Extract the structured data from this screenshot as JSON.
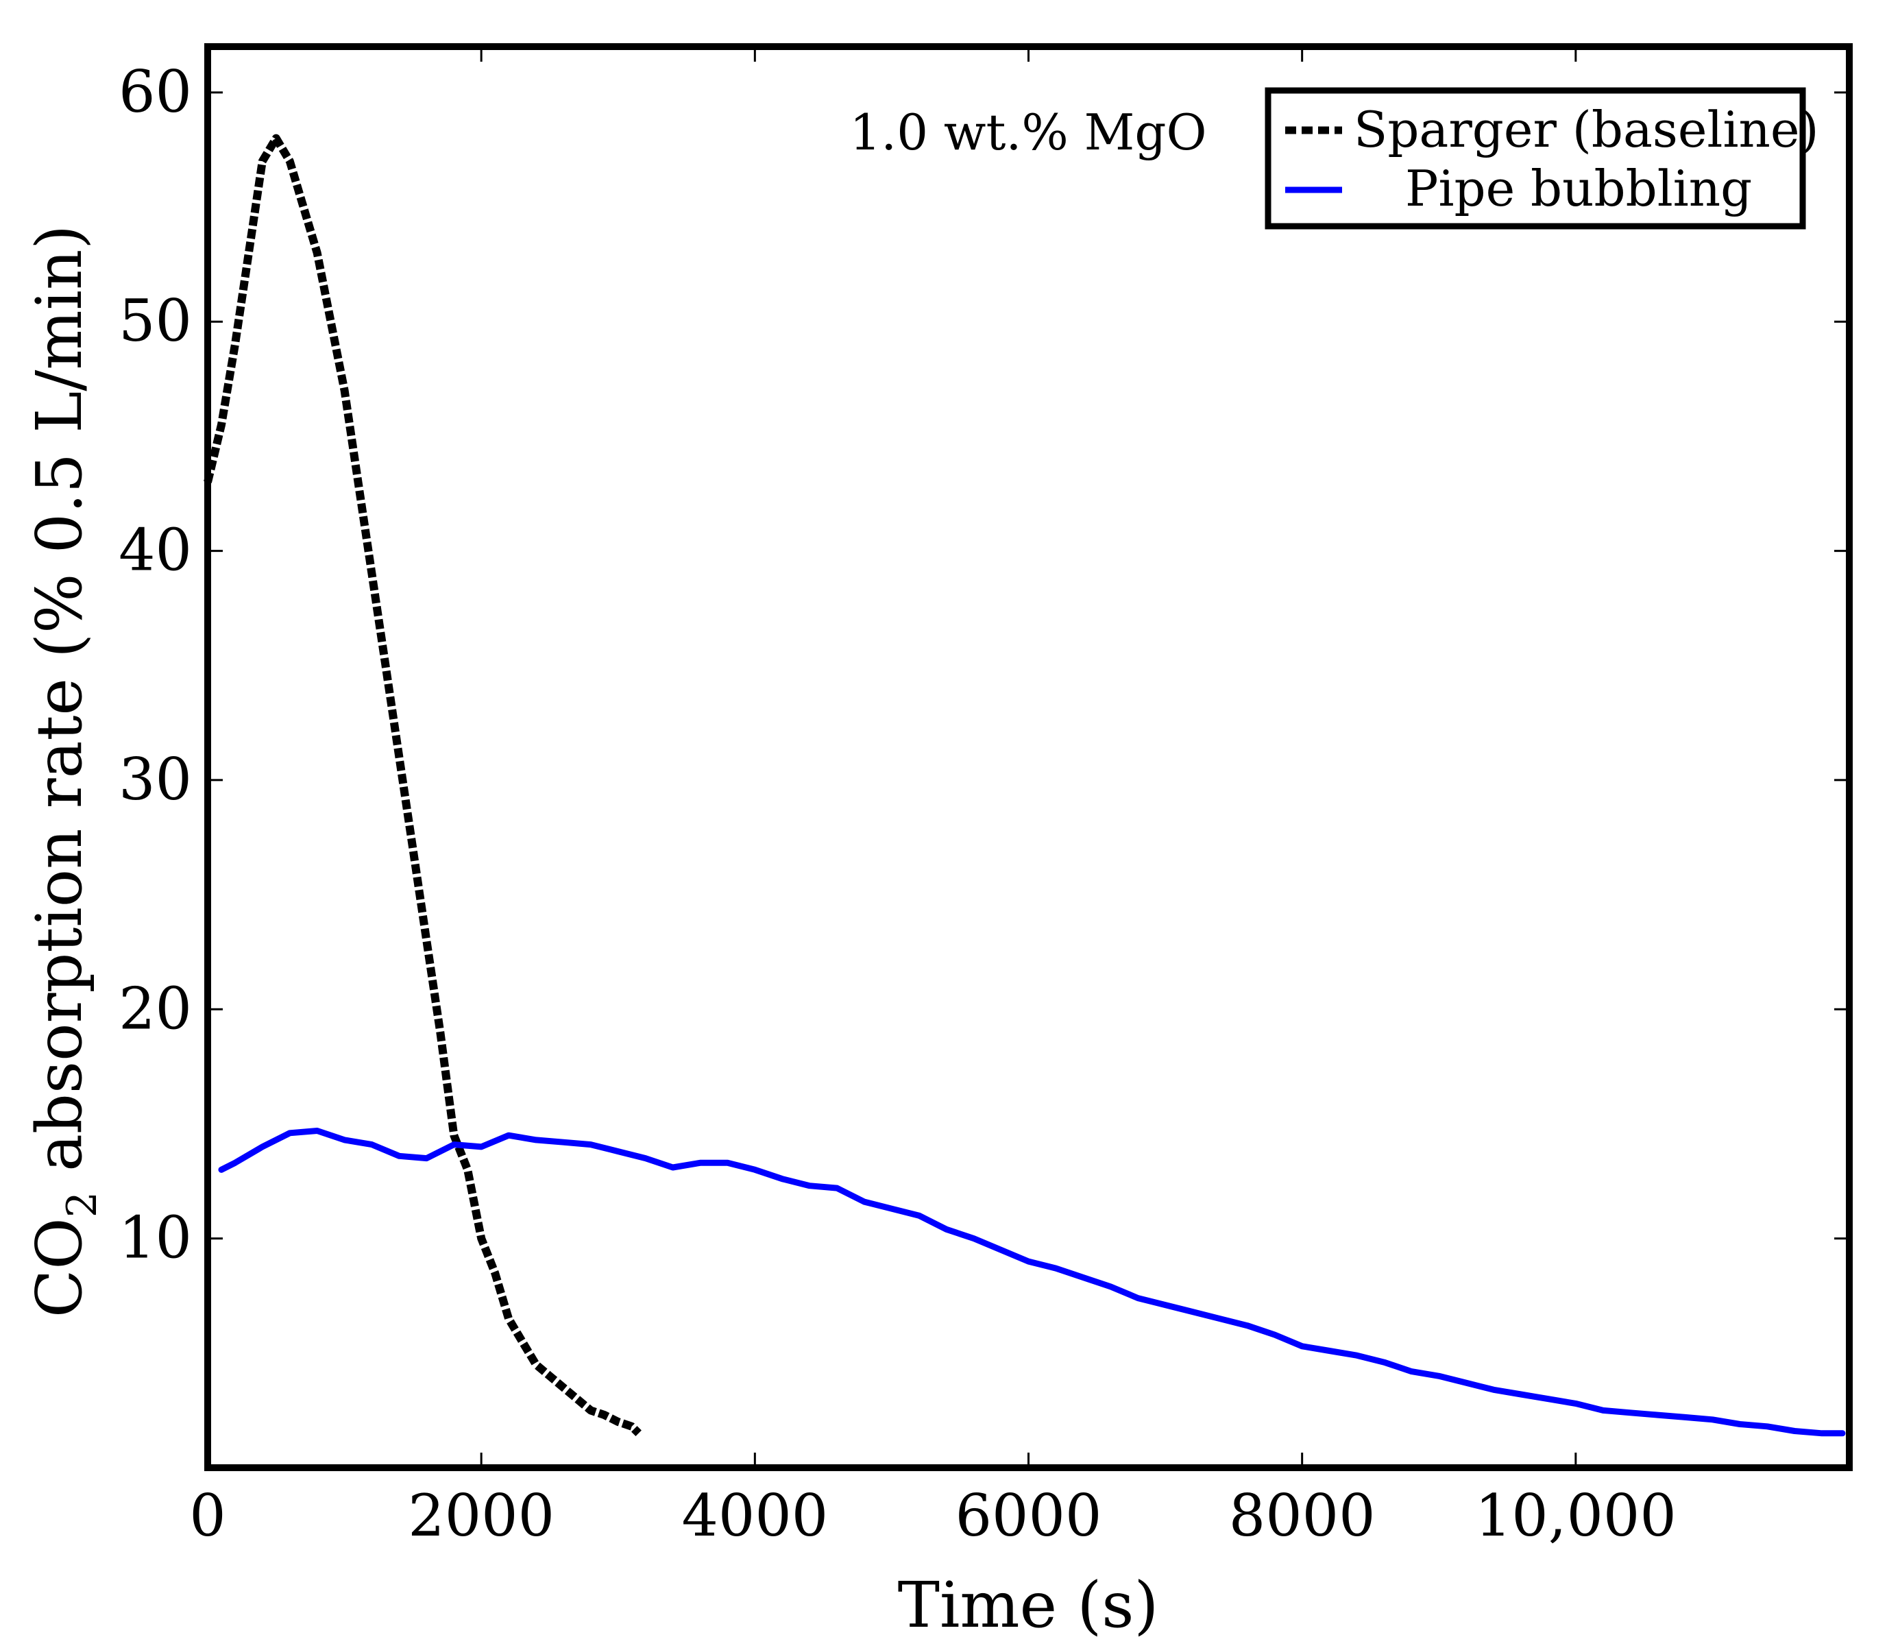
{
  "chart_data": {
    "type": "line",
    "title": "",
    "annotation": "1.0 wt.% MgO",
    "xlabel": "Time (s)",
    "ylabel_prefix": "CO",
    "ylabel_subscript": "2",
    "ylabel_suffix": " absorption rate (% 0.5 L/min)",
    "xlim": [
      0,
      12000
    ],
    "ylim": [
      0,
      62
    ],
    "x_ticks": [
      0,
      2000,
      4000,
      6000,
      8000,
      10000
    ],
    "x_tick_labels": [
      "0",
      "2000",
      "4000",
      "6000",
      "8000",
      "10,000"
    ],
    "y_ticks": [
      10,
      20,
      30,
      40,
      50,
      60
    ],
    "y_tick_labels": [
      "10",
      "20",
      "30",
      "40",
      "50",
      "60"
    ],
    "grid": false,
    "legend_position": "top-right",
    "series": [
      {
        "name": "Sparger (baseline)",
        "color": "#000000",
        "style": "dotted",
        "x": [
          0,
          100,
          200,
          300,
          400,
          500,
          600,
          700,
          800,
          900,
          1000,
          1100,
          1200,
          1300,
          1400,
          1500,
          1600,
          1700,
          1800,
          1900,
          2000,
          2100,
          2200,
          2300,
          2400,
          2500,
          2600,
          2700,
          2800,
          2900,
          3000,
          3100,
          3150
        ],
        "y": [
          43,
          45.5,
          49,
          53,
          57,
          58,
          57,
          55,
          53,
          50,
          47,
          43,
          39,
          35,
          31,
          27,
          23,
          19,
          14.5,
          13,
          10,
          8.5,
          6.5,
          5.5,
          4.5,
          4,
          3.5,
          3,
          2.5,
          2.3,
          2,
          1.8,
          1.5
        ]
      },
      {
        "name": "Pipe bubbling",
        "color": "#0000ff",
        "style": "solid",
        "x": [
          100,
          200,
          400,
          600,
          800,
          1000,
          1200,
          1400,
          1600,
          1800,
          2000,
          2200,
          2400,
          2600,
          2800,
          3000,
          3200,
          3400,
          3600,
          3800,
          4000,
          4200,
          4400,
          4600,
          4800,
          5000,
          5200,
          5400,
          5600,
          5800,
          6000,
          6200,
          6400,
          6600,
          6800,
          7000,
          7200,
          7400,
          7600,
          7800,
          8000,
          8200,
          8400,
          8600,
          8800,
          9000,
          9200,
          9400,
          9600,
          9800,
          10000,
          10200,
          10400,
          10600,
          10800,
          11000,
          11200,
          11400,
          11600,
          11800,
          11950
        ],
        "y": [
          13,
          13.3,
          14,
          14.6,
          14.7,
          14.3,
          14.1,
          13.6,
          13.5,
          14.1,
          14,
          14.5,
          14.3,
          14.2,
          14.1,
          13.8,
          13.5,
          13.1,
          13.3,
          13.3,
          13,
          12.6,
          12.3,
          12.2,
          11.6,
          11.3,
          11,
          10.4,
          10,
          9.5,
          9,
          8.7,
          8.3,
          7.9,
          7.4,
          7.1,
          6.8,
          6.5,
          6.2,
          5.8,
          5.3,
          5.1,
          4.9,
          4.6,
          4.2,
          4,
          3.7,
          3.4,
          3.2,
          3,
          2.8,
          2.5,
          2.4,
          2.3,
          2.2,
          2.1,
          1.9,
          1.8,
          1.6,
          1.5,
          1.5
        ]
      }
    ]
  }
}
